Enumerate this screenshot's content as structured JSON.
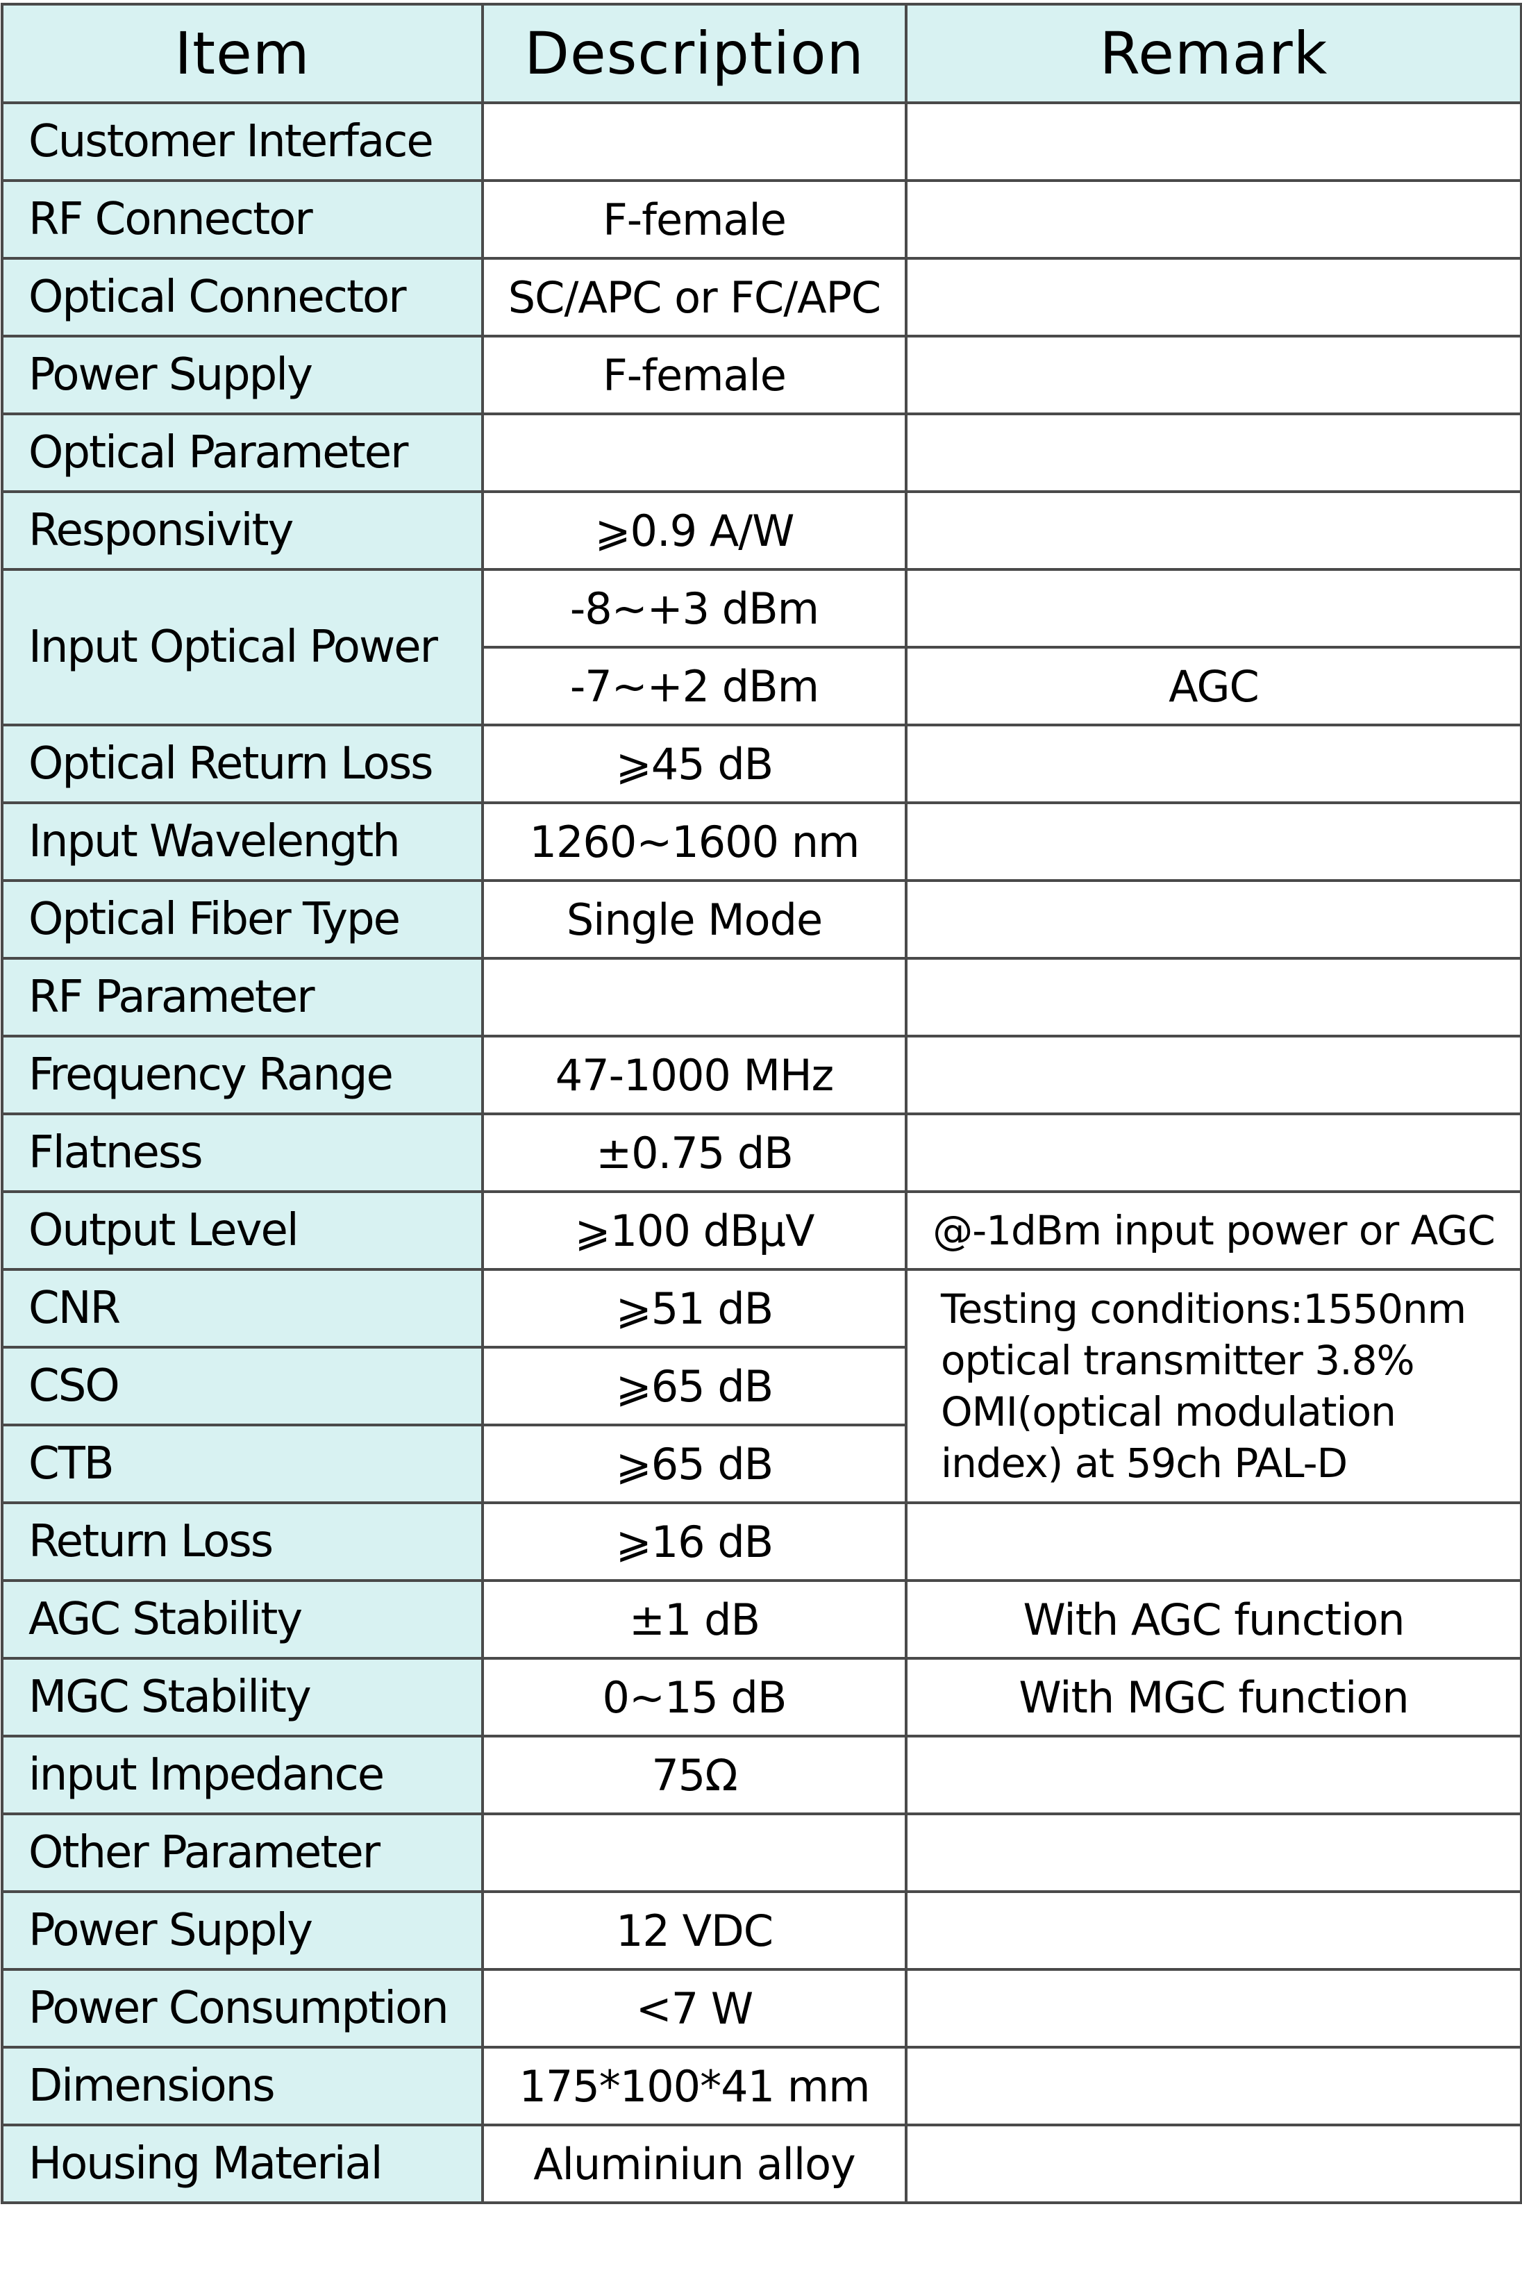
{
  "table": {
    "headers": {
      "item": "Item",
      "description": "Description",
      "remark": "Remark"
    },
    "colors": {
      "header_bg": "#d8f2f2",
      "item_bg": "#d8f2f2",
      "border": "#4a4a4a",
      "cell_bg": "#ffffff"
    },
    "rows": [
      {
        "item": "Customer Interface",
        "description": "",
        "remark": ""
      },
      {
        "item": "RF Connector",
        "description": "F-female",
        "remark": ""
      },
      {
        "item": "Optical Connector",
        "description": "SC/APC or FC/APC",
        "remark": ""
      },
      {
        "item": "Power Supply",
        "description": "F-female",
        "remark": ""
      },
      {
        "item": "Optical Parameter",
        "description": "",
        "remark": ""
      },
      {
        "item": "Responsivity",
        "description": "⩾0.9 A/W",
        "remark": ""
      },
      {
        "item": "Input Optical Power",
        "description": "-8~+3 dBm",
        "remark": ""
      },
      {
        "item": "",
        "description": "-7~+2 dBm",
        "remark": "AGC"
      },
      {
        "item": "Optical Return Loss",
        "description": "⩾45 dB",
        "remark": ""
      },
      {
        "item": "Input Wavelength",
        "description": "1260~1600 nm",
        "remark": ""
      },
      {
        "item": "Optical Fiber Type",
        "description": "Single Mode",
        "remark": ""
      },
      {
        "item": "RF Parameter",
        "description": "",
        "remark": ""
      },
      {
        "item": "Frequency Range",
        "description": "47-1000 MHz",
        "remark": ""
      },
      {
        "item": "Flatness",
        "description": "±0.75 dB",
        "remark": ""
      },
      {
        "item": "Output Level",
        "description": "⩾100 dBμV",
        "remark": "@-1dBm input power or AGC"
      },
      {
        "item": "CNR",
        "description": "⩾51 dB",
        "remark": "Testing conditions:1550nm optical transmitter 3.8% OMI(optical modulation index) at 59ch PAL-D"
      },
      {
        "item": "CSO",
        "description": "⩾65 dB",
        "remark": ""
      },
      {
        "item": "CTB",
        "description": "⩾65 dB",
        "remark": ""
      },
      {
        "item": "Return Loss",
        "description": "⩾16 dB",
        "remark": ""
      },
      {
        "item": "AGC Stability",
        "description": "±1 dB",
        "remark": "With AGC function"
      },
      {
        "item": "MGC Stability",
        "description": "0~15 dB",
        "remark": "With MGC function"
      },
      {
        "item": "input Impedance",
        "description": "75Ω",
        "remark": ""
      },
      {
        "item": "Other Parameter",
        "description": "",
        "remark": ""
      },
      {
        "item": "Power Supply",
        "description": "12 VDC",
        "remark": ""
      },
      {
        "item": "Power Consumption",
        "description": "<7 W",
        "remark": ""
      },
      {
        "item": "Dimensions",
        "description": "175*100*41 mm",
        "remark": ""
      },
      {
        "item": "Housing Material",
        "description": "Aluminiun alloy",
        "remark": ""
      }
    ]
  }
}
